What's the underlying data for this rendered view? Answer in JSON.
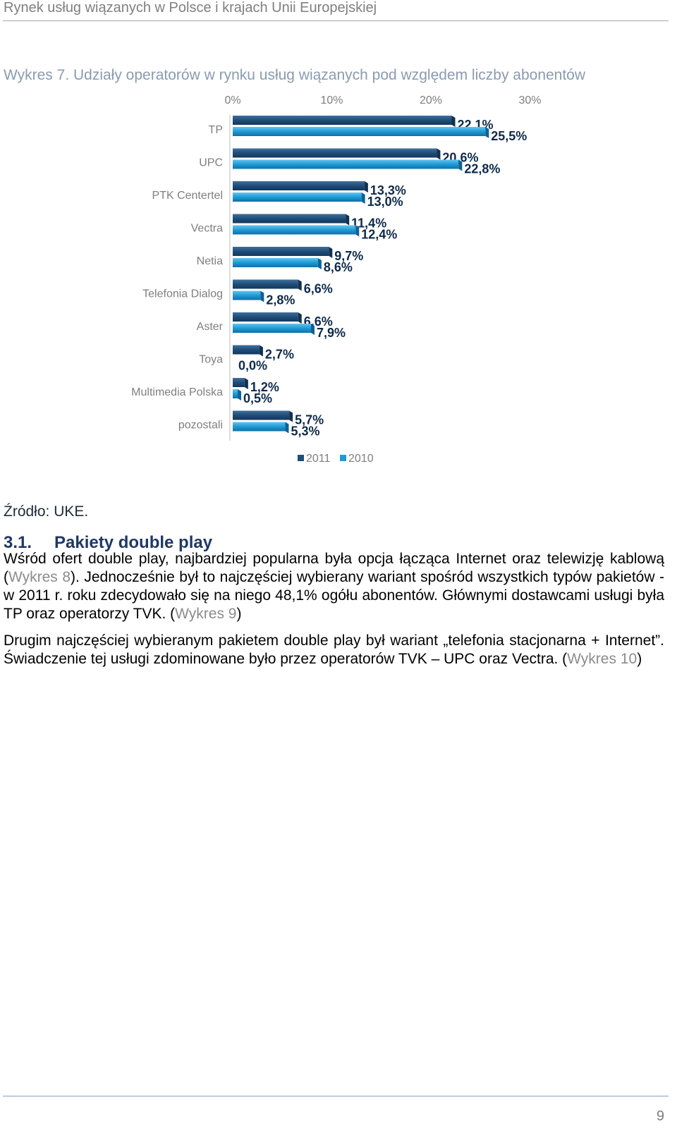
{
  "header": {
    "title": "Rynek usług wiązanych w Polsce i krajach Unii Europejskiej"
  },
  "figure": {
    "caption": "Wykres 7. Udziały operatorów w rynku usług wiązanych pod względem liczby abonentów"
  },
  "chart_data": {
    "type": "bar",
    "orientation": "horizontal",
    "categories": [
      "TP",
      "UPC",
      "PTK Centertel",
      "Vectra",
      "Netia",
      "Telefonia Dialog",
      "Aster",
      "Toya",
      "Multimedia Polska",
      "pozostali"
    ],
    "series": [
      {
        "name": "2011",
        "values": [
          22.1,
          20.6,
          13.3,
          11.4,
          9.7,
          6.6,
          6.6,
          2.7,
          1.2,
          5.7
        ],
        "labels": [
          "22,1%",
          "20,6%",
          "13,3%",
          "11,4%",
          "9,7%",
          "6,6%",
          "6,6%",
          "2,7%",
          "1,2%",
          "5,7%"
        ],
        "color": "#1f4e79"
      },
      {
        "name": "2010",
        "values": [
          25.5,
          22.8,
          13.0,
          12.4,
          8.6,
          2.8,
          7.9,
          0.0,
          0.5,
          5.3
        ],
        "labels": [
          "25,5%",
          "22,8%",
          "13,0%",
          "12,4%",
          "8,6%",
          "2,8%",
          "7,9%",
          "0,0%",
          "0,5%",
          "5,3%"
        ],
        "color": "#1e9ad6"
      }
    ],
    "xaxis": {
      "ticks": [
        "0%",
        "10%",
        "20%",
        "30%"
      ],
      "range": [
        0,
        30
      ],
      "position": "top"
    },
    "legend_position": "bottom"
  },
  "source": "Źródło: UKE.",
  "section": {
    "number": "3.1.",
    "title": "Pakiety double play"
  },
  "paragraphs": {
    "p1": {
      "t1": "Wśród ofert double play, najbardziej popularna była opcja łącząca Internet oraz telewizję kablową (",
      "r1": "Wykres 8",
      "t2": "). Jednocześnie był to najczęściej wybierany wariant spośród wszystkich typów pakietów - w 2011 r. roku zdecydowało się na niego 48,1% ogółu abonentów. Głównymi dostawcami usługi była TP oraz operatorzy TVK. (",
      "r2": "Wykres 9",
      "t3": ")"
    },
    "p2": {
      "t1": "Drugim najczęściej wybieranym pakietem double play był wariant „telefonia stacjonarna + Internet”. Świadczenie tej usługi zdominowane było przez operatorów TVK – UPC oraz Vectra. (",
      "r1": "Wykres 10",
      "t2": ")"
    }
  },
  "footer": {
    "page_number": "9"
  }
}
